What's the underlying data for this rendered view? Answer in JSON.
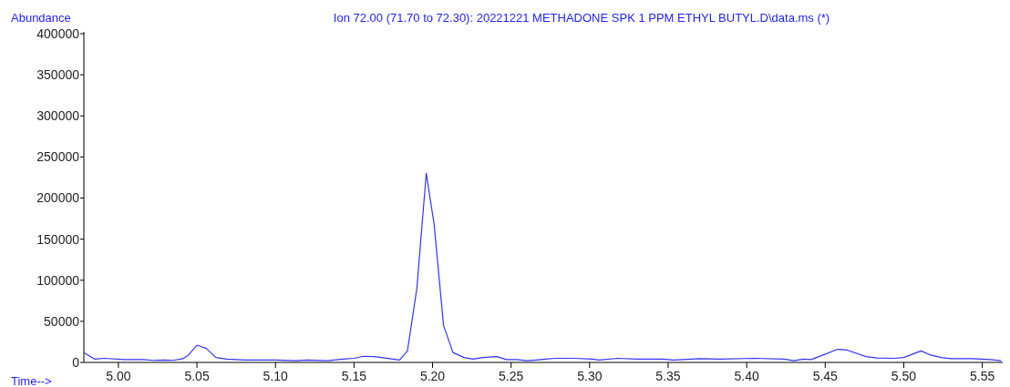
{
  "chart_data": {
    "type": "line",
    "title": "Ion  72.00 (71.70 to 72.30): 20221221 METHADONE SPK 1 PPM ETHYL BUTYL.D\\data.ms (*)",
    "xlabel": "Time-->",
    "ylabel": "Abundance",
    "xlim": [
      4.978,
      5.563
    ],
    "xticks": [
      {
        "value": 5.0,
        "label": "5.00"
      },
      5.05,
      {
        "value": 5.1,
        "label": "5.10"
      },
      5.15,
      {
        "value": 5.2,
        "label": "5.20"
      },
      5.25,
      {
        "value": 5.3,
        "label": "5.30"
      },
      5.35,
      {
        "value": 5.4,
        "label": "5.40"
      },
      5.45,
      {
        "value": 5.5,
        "label": "5.50"
      },
      5.55
    ],
    "ylim": [
      0,
      400000
    ],
    "yticks": [
      0,
      50000,
      100000,
      150000,
      200000,
      250000,
      300000,
      350000,
      400000
    ],
    "grid": false,
    "marker": "none",
    "line_style": "solid",
    "series": [
      {
        "color": "#3333ff",
        "x": [
          4.978,
          4.985,
          4.991,
          5.004,
          5.016,
          5.022,
          5.029,
          5.035,
          5.041,
          5.044,
          5.05,
          5.056,
          5.062,
          5.069,
          5.081,
          5.1,
          5.113,
          5.12,
          5.133,
          5.143,
          5.15,
          5.156,
          5.163,
          5.175,
          5.179,
          5.184,
          5.19,
          5.196,
          5.201,
          5.207,
          5.213,
          5.22,
          5.226,
          5.232,
          5.241,
          5.247,
          5.254,
          5.26,
          5.266,
          5.272,
          5.278,
          5.29,
          5.302,
          5.306,
          5.318,
          5.33,
          5.347,
          5.353,
          5.37,
          5.383,
          5.405,
          5.424,
          5.43,
          5.436,
          5.441,
          5.446,
          5.458,
          5.464,
          5.476,
          5.483,
          5.494,
          5.5,
          5.511,
          5.517,
          5.524,
          5.53,
          5.544,
          5.555,
          5.562
        ],
        "values": [
          12000,
          4000,
          5000,
          3500,
          3500,
          2500,
          3000,
          2500,
          4500,
          8000,
          21000,
          17000,
          6000,
          4000,
          3000,
          3000,
          2000,
          3000,
          2000,
          4000,
          5000,
          7500,
          7000,
          4000,
          3000,
          14000,
          90000,
          230000,
          168000,
          45000,
          12000,
          6000,
          4000,
          6000,
          7000,
          3500,
          3500,
          2000,
          3000,
          4000,
          5000,
          5000,
          4000,
          3000,
          5000,
          4000,
          4000,
          3000,
          4500,
          4000,
          5000,
          4000,
          2000,
          4000,
          3500,
          7000,
          16000,
          15000,
          7000,
          5500,
          5000,
          6000,
          14000,
          9000,
          6000,
          4500,
          4500,
          3500,
          2000
        ]
      }
    ]
  }
}
